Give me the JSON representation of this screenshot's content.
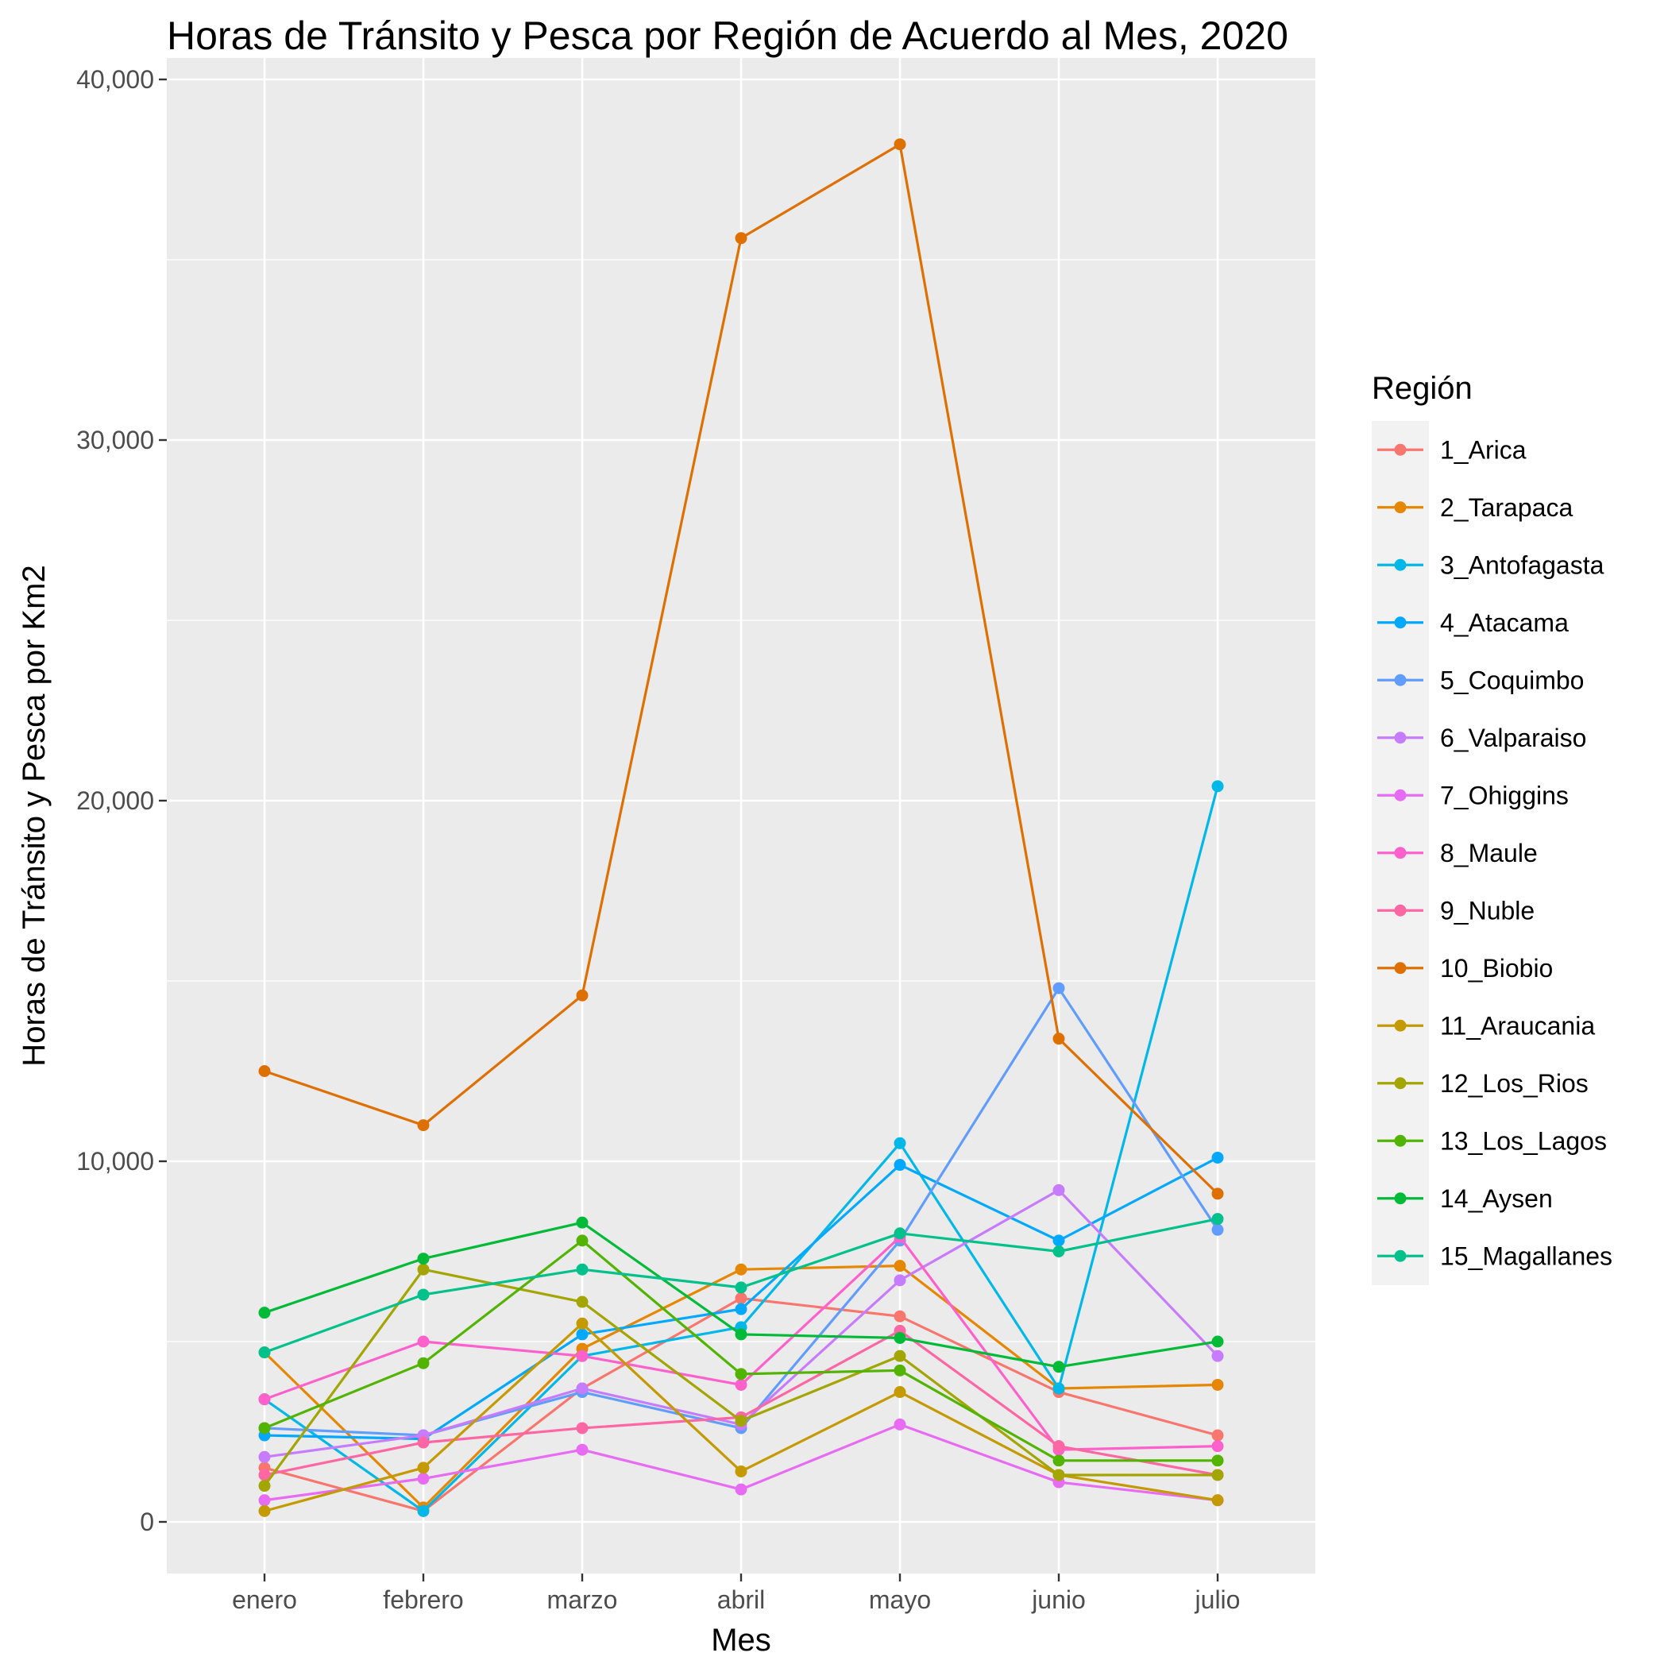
{
  "chart_data": {
    "type": "line",
    "title": "Horas de Tránsito y Pesca por Región de Acuerdo al Mes, 2020",
    "xlabel": "Mes",
    "ylabel": "Horas de Tránsito y Pesca por Km2",
    "categories": [
      "enero",
      "febrero",
      "marzo",
      "abril",
      "mayo",
      "junio",
      "julio"
    ],
    "ylim": [
      -1300,
      40000
    ],
    "yticks": [
      0,
      10000,
      20000,
      30000,
      40000
    ],
    "ytick_labels": [
      "0",
      "10,000",
      "20,000",
      "30,000",
      "40,000"
    ],
    "grid": true,
    "legend": {
      "title": "Región",
      "position": "right"
    },
    "series": [
      {
        "name": "1_Arica",
        "color": "#F8766D",
        "values": [
          1500,
          300,
          3700,
          6200,
          5700,
          3600,
          2400
        ]
      },
      {
        "name": "2_Tarapaca",
        "color": "#E58700",
        "values": [
          4700,
          400,
          4800,
          7000,
          7100,
          3700,
          3800
        ]
      },
      {
        "name": "3_Antofagasta",
        "color": "#00B8E7",
        "values": [
          3400,
          300,
          4600,
          5400,
          10500,
          3700,
          20400
        ]
      },
      {
        "name": "4_Atacama",
        "color": "#00A9FF",
        "values": [
          2400,
          2300,
          5200,
          5900,
          9900,
          7800,
          10100
        ]
      },
      {
        "name": "5_Coquimbo",
        "color": "#619CFF",
        "values": [
          2600,
          2400,
          3600,
          2600,
          7800,
          14800,
          8100
        ]
      },
      {
        "name": "6_Valparaiso",
        "color": "#C77CFF",
        "values": [
          1800,
          2400,
          3700,
          2700,
          6700,
          9200,
          4600
        ]
      },
      {
        "name": "7_Ohiggins",
        "color": "#E76BF3",
        "values": [
          600,
          1200,
          2000,
          900,
          2700,
          1100,
          600
        ]
      },
      {
        "name": "8_Maule",
        "color": "#FF61CC",
        "values": [
          3400,
          5000,
          4600,
          3800,
          7900,
          2000,
          2100
        ]
      },
      {
        "name": "9_Nuble",
        "color": "#FF67A4",
        "values": [
          1300,
          2200,
          2600,
          2900,
          5300,
          2100,
          1300
        ]
      },
      {
        "name": "10_Biobio",
        "color": "#DE7000",
        "values": [
          12500,
          11000,
          14600,
          35600,
          38200,
          13400,
          9100
        ]
      },
      {
        "name": "11_Araucania",
        "color": "#C49A00",
        "values": [
          300,
          1500,
          5500,
          1400,
          3600,
          1300,
          600
        ]
      },
      {
        "name": "12_Los_Rios",
        "color": "#A3A500",
        "values": [
          1000,
          7000,
          6100,
          2800,
          4600,
          1300,
          1300
        ]
      },
      {
        "name": "13_Los_Lagos",
        "color": "#53B400",
        "values": [
          2600,
          4400,
          7800,
          4100,
          4200,
          1700,
          1700
        ]
      },
      {
        "name": "14_Aysen",
        "color": "#00BA38",
        "values": [
          5800,
          7300,
          8300,
          5200,
          5100,
          4300,
          5000
        ]
      },
      {
        "name": "15_Magallanes",
        "color": "#00C08B",
        "values": [
          4700,
          6300,
          7000,
          6500,
          8000,
          7500,
          8400
        ]
      }
    ]
  }
}
